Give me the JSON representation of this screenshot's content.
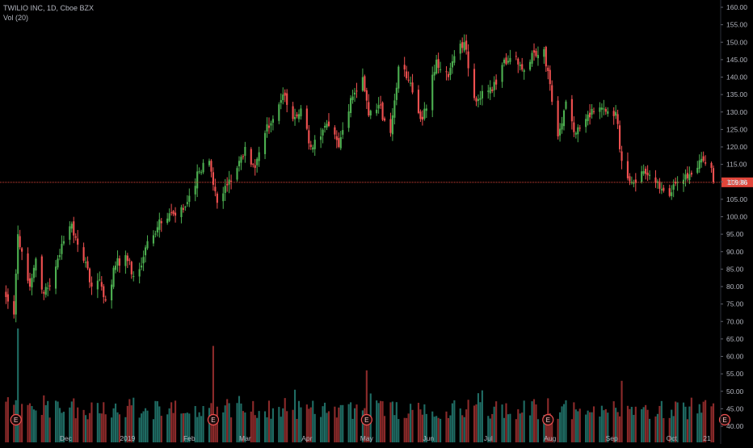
{
  "header": {
    "symbol_line": "TWILIO INC, 1D, Cboe BZX",
    "volume_line": "Vol (20)"
  },
  "colors": {
    "background": "#000000",
    "up": "#26a69a",
    "down": "#ef5350",
    "up_candle": "#4caf50",
    "down_candle": "#f05050",
    "up_volume": "#1f6b63",
    "down_volume": "#8b2a2a",
    "price_line": "#e0453a",
    "axis_text": "#b2b5be",
    "earnings_marker": "#f05050"
  },
  "chart_data": {
    "type": "candlestick",
    "title": "TWILIO INC, 1D, Cboe BZX",
    "indicator": "Vol (20)",
    "y_axis": {
      "ylim": [
        40,
        160
      ],
      "ticks": [
        "160.00",
        "155.00",
        "150.00",
        "145.00",
        "140.00",
        "135.00",
        "130.00",
        "125.00",
        "120.00",
        "115.00",
        "110.00",
        "105.00",
        "100.00",
        "95.00",
        "90.00",
        "85.00",
        "80.00",
        "75.00",
        "70.00",
        "65.00",
        "60.00",
        "55.00",
        "50.00",
        "45.00",
        "40.00"
      ],
      "position": "right"
    },
    "x_axis": {
      "labels": [
        {
          "label": "Dec",
          "date": "2018-12-01"
        },
        {
          "label": "2019",
          "date": "2019-01-01"
        },
        {
          "label": "Feb",
          "date": "2019-02-01"
        },
        {
          "label": "Mar",
          "date": "2019-03-01"
        },
        {
          "label": "Apr",
          "date": "2019-04-01"
        },
        {
          "label": "May",
          "date": "2019-05-01"
        },
        {
          "label": "Jun",
          "date": "2019-06-01"
        },
        {
          "label": "Jul",
          "date": "2019-07-01"
        },
        {
          "label": "Aug",
          "date": "2019-08-01"
        },
        {
          "label": "Sep",
          "date": "2019-09-01"
        },
        {
          "label": "Oct",
          "date": "2019-10-01"
        },
        {
          "label": "21",
          "date": "2019-10-21"
        }
      ]
    },
    "last_price": 109.86,
    "last_price_label": "109.86",
    "earnings_markers": [
      {
        "label": "E",
        "date": "2018-11-06"
      },
      {
        "label": "E",
        "date": "2019-02-13"
      },
      {
        "label": "E",
        "date": "2019-05-01"
      },
      {
        "label": "E",
        "date": "2019-07-31"
      },
      {
        "label": "E",
        "date": "2019-10-23"
      }
    ],
    "close_anchors": [
      [
        "2018-11-01",
        77
      ],
      [
        "2018-11-05",
        72
      ],
      [
        "2018-11-07",
        95
      ],
      [
        "2018-11-09",
        90
      ],
      [
        "2018-11-13",
        80
      ],
      [
        "2018-11-16",
        88
      ],
      [
        "2018-11-20",
        78
      ],
      [
        "2018-11-23",
        80
      ],
      [
        "2018-11-27",
        88
      ],
      [
        "2018-11-30",
        93
      ],
      [
        "2018-12-04",
        98
      ],
      [
        "2018-12-07",
        92
      ],
      [
        "2018-12-11",
        87
      ],
      [
        "2018-12-14",
        80
      ],
      [
        "2018-12-18",
        82
      ],
      [
        "2018-12-21",
        76
      ],
      [
        "2018-12-26",
        86
      ],
      [
        "2018-12-31",
        89
      ],
      [
        "2019-01-04",
        83
      ],
      [
        "2019-01-08",
        86
      ],
      [
        "2019-01-11",
        93
      ],
      [
        "2019-01-16",
        97
      ],
      [
        "2019-01-22",
        101
      ],
      [
        "2019-01-29",
        102
      ],
      [
        "2019-02-01",
        106
      ],
      [
        "2019-02-06",
        113
      ],
      [
        "2019-02-11",
        116
      ],
      [
        "2019-02-15",
        104
      ],
      [
        "2019-02-20",
        109
      ],
      [
        "2019-02-26",
        116
      ],
      [
        "2019-03-01",
        120
      ],
      [
        "2019-03-06",
        114
      ],
      [
        "2019-03-11",
        124
      ],
      [
        "2019-03-15",
        128
      ],
      [
        "2019-03-20",
        135
      ],
      [
        "2019-03-25",
        128
      ],
      [
        "2019-03-29",
        131
      ],
      [
        "2019-04-03",
        120
      ],
      [
        "2019-04-08",
        123
      ],
      [
        "2019-04-12",
        126
      ],
      [
        "2019-04-17",
        120
      ],
      [
        "2019-04-23",
        134
      ],
      [
        "2019-04-29",
        140
      ],
      [
        "2019-05-02",
        129
      ],
      [
        "2019-05-07",
        132
      ],
      [
        "2019-05-13",
        124
      ],
      [
        "2019-05-17",
        143
      ],
      [
        "2019-05-22",
        139
      ],
      [
        "2019-05-28",
        128
      ],
      [
        "2019-05-31",
        131
      ],
      [
        "2019-06-05",
        145
      ],
      [
        "2019-06-11",
        140
      ],
      [
        "2019-06-14",
        146
      ],
      [
        "2019-06-19",
        150
      ],
      [
        "2019-06-24",
        134
      ],
      [
        "2019-06-28",
        136
      ],
      [
        "2019-07-03",
        136
      ],
      [
        "2019-07-09",
        145
      ],
      [
        "2019-07-15",
        146
      ],
      [
        "2019-07-19",
        142
      ],
      [
        "2019-07-24",
        147
      ],
      [
        "2019-07-29",
        148
      ],
      [
        "2019-08-01",
        138
      ],
      [
        "2019-08-05",
        123
      ],
      [
        "2019-08-09",
        133
      ],
      [
        "2019-08-14",
        124
      ],
      [
        "2019-08-19",
        128
      ],
      [
        "2019-08-23",
        130
      ],
      [
        "2019-08-28",
        131
      ],
      [
        "2019-09-03",
        130
      ],
      [
        "2019-09-06",
        116
      ],
      [
        "2019-09-11",
        110
      ],
      [
        "2019-09-16",
        113
      ],
      [
        "2019-09-20",
        112
      ],
      [
        "2019-09-25",
        108
      ],
      [
        "2019-10-01",
        107
      ],
      [
        "2019-10-04",
        110
      ],
      [
        "2019-10-09",
        111
      ],
      [
        "2019-10-14",
        114
      ],
      [
        "2019-10-17",
        116
      ],
      [
        "2019-10-21",
        114
      ],
      [
        "2019-10-22",
        109.86
      ]
    ],
    "volume_spikes": [
      {
        "date": "2018-11-07",
        "value": 68
      },
      {
        "date": "2019-02-13",
        "value": 63
      },
      {
        "date": "2019-05-01",
        "value": 56
      },
      {
        "date": "2019-07-31",
        "value": 48
      },
      {
        "date": "2019-09-06",
        "value": 53
      }
    ]
  }
}
